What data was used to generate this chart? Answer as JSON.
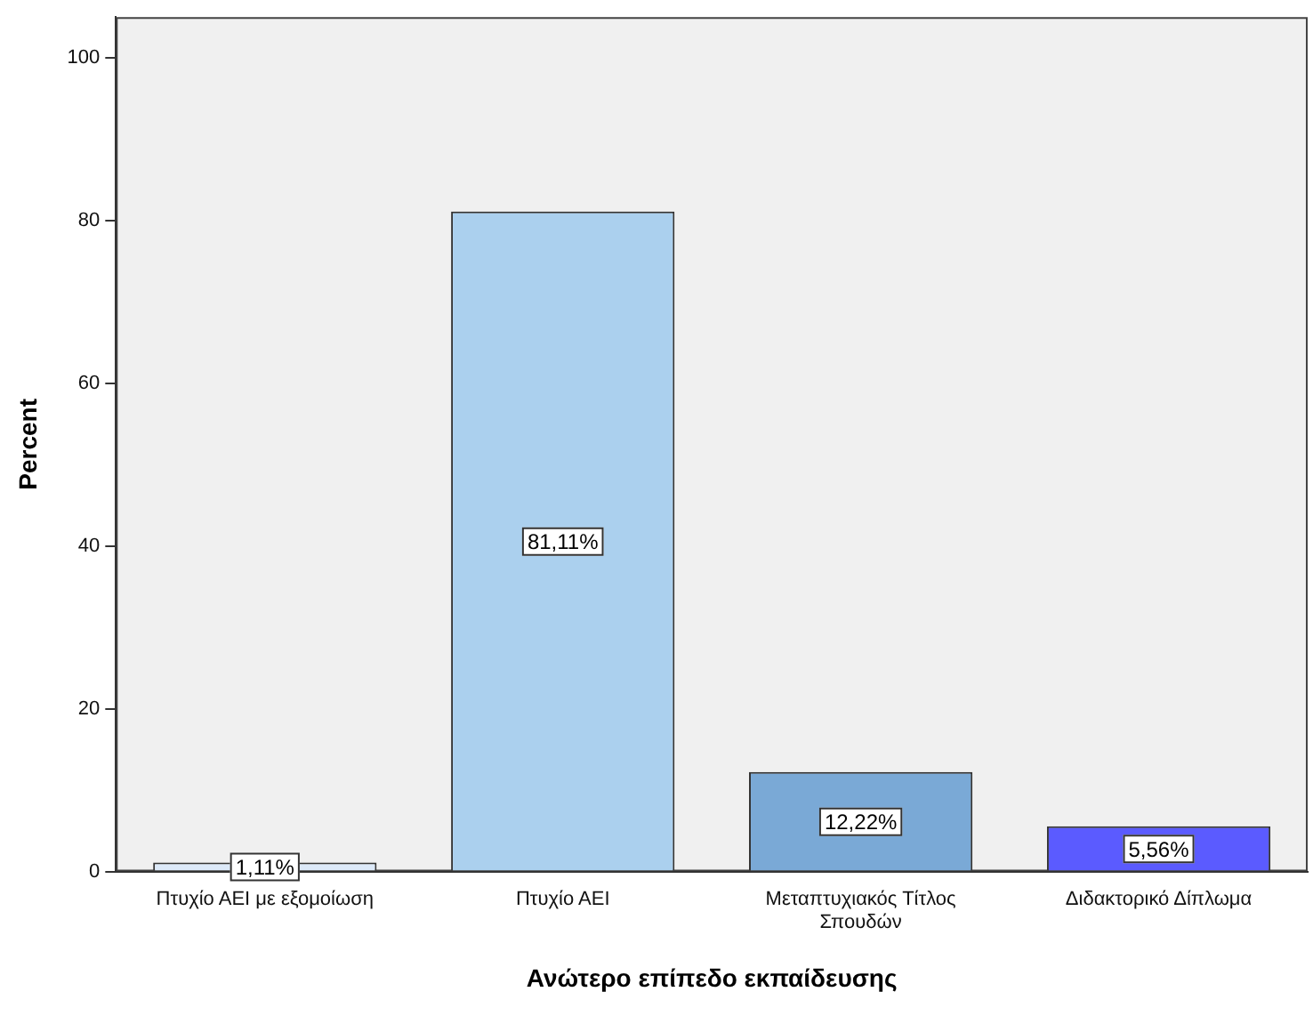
{
  "chart_data": {
    "type": "bar",
    "xlabel": "Ανώτερο επίπεδο εκπαίδευσης",
    "ylabel": "Percent",
    "categories": [
      "Πτυχίο ΑΕΙ με εξομοίωση",
      "Πτυχίο ΑΕΙ",
      "Μεταπτυχιακός Τίτλος Σπουδών",
      "Διδακτορικό Δίπλωμα"
    ],
    "values": [
      1.11,
      81.11,
      12.22,
      5.56
    ],
    "colors": [
      "#dce9f8",
      "#abd0ee",
      "#7aa9d6",
      "#5b5bff"
    ],
    "value_labels": [
      "1,11%",
      "81,11%",
      "12,22%",
      "5,56%"
    ],
    "ylim": [
      0,
      105
    ],
    "yticks": [
      0,
      20,
      40,
      60,
      80,
      100
    ],
    "grid": false,
    "legend": false
  }
}
